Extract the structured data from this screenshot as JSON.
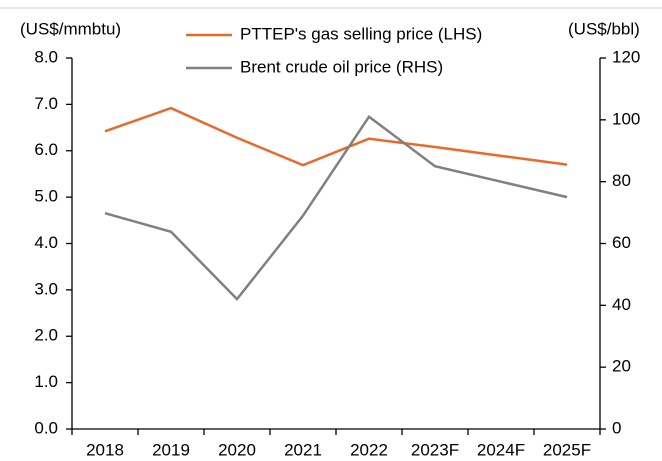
{
  "chart_data": {
    "type": "line",
    "y_label": "(US$/mmbtu)",
    "y2_label": "(US$/bbl)",
    "categories": [
      "2018",
      "2019",
      "2020",
      "2021",
      "2022",
      "2023F",
      "2024F",
      "2025F"
    ],
    "series": [
      {
        "name": "PTTEP's gas selling price (LHS)",
        "color": "#e8692a",
        "values": [
          6.42,
          6.92,
          6.28,
          5.69,
          6.26,
          6.08,
          5.89,
          5.7
        ]
      },
      {
        "name": "Brent crude oil price (RHS)",
        "color": "#808080",
        "axis": "y2",
        "values": [
          69.8,
          63.8,
          42,
          69,
          101,
          85,
          80,
          75
        ]
      }
    ],
    "ylim": [
      0,
      8
    ],
    "yticks": [
      {
        "value": 0,
        "label": "0.0"
      },
      {
        "value": 1,
        "label": "1.0"
      },
      {
        "value": 2,
        "label": "2.0"
      },
      {
        "value": 3,
        "label": "3.0"
      },
      {
        "value": 4,
        "label": "4.0"
      },
      {
        "value": 5,
        "label": "5.0"
      },
      {
        "value": 6,
        "label": "6.0"
      },
      {
        "value": 7,
        "label": "7.0"
      },
      {
        "value": 8,
        "label": "8.0"
      }
    ],
    "y2lim": [
      0,
      120
    ],
    "y2ticks": [
      0,
      20,
      40,
      60,
      80,
      100,
      120
    ],
    "grid": false
  }
}
